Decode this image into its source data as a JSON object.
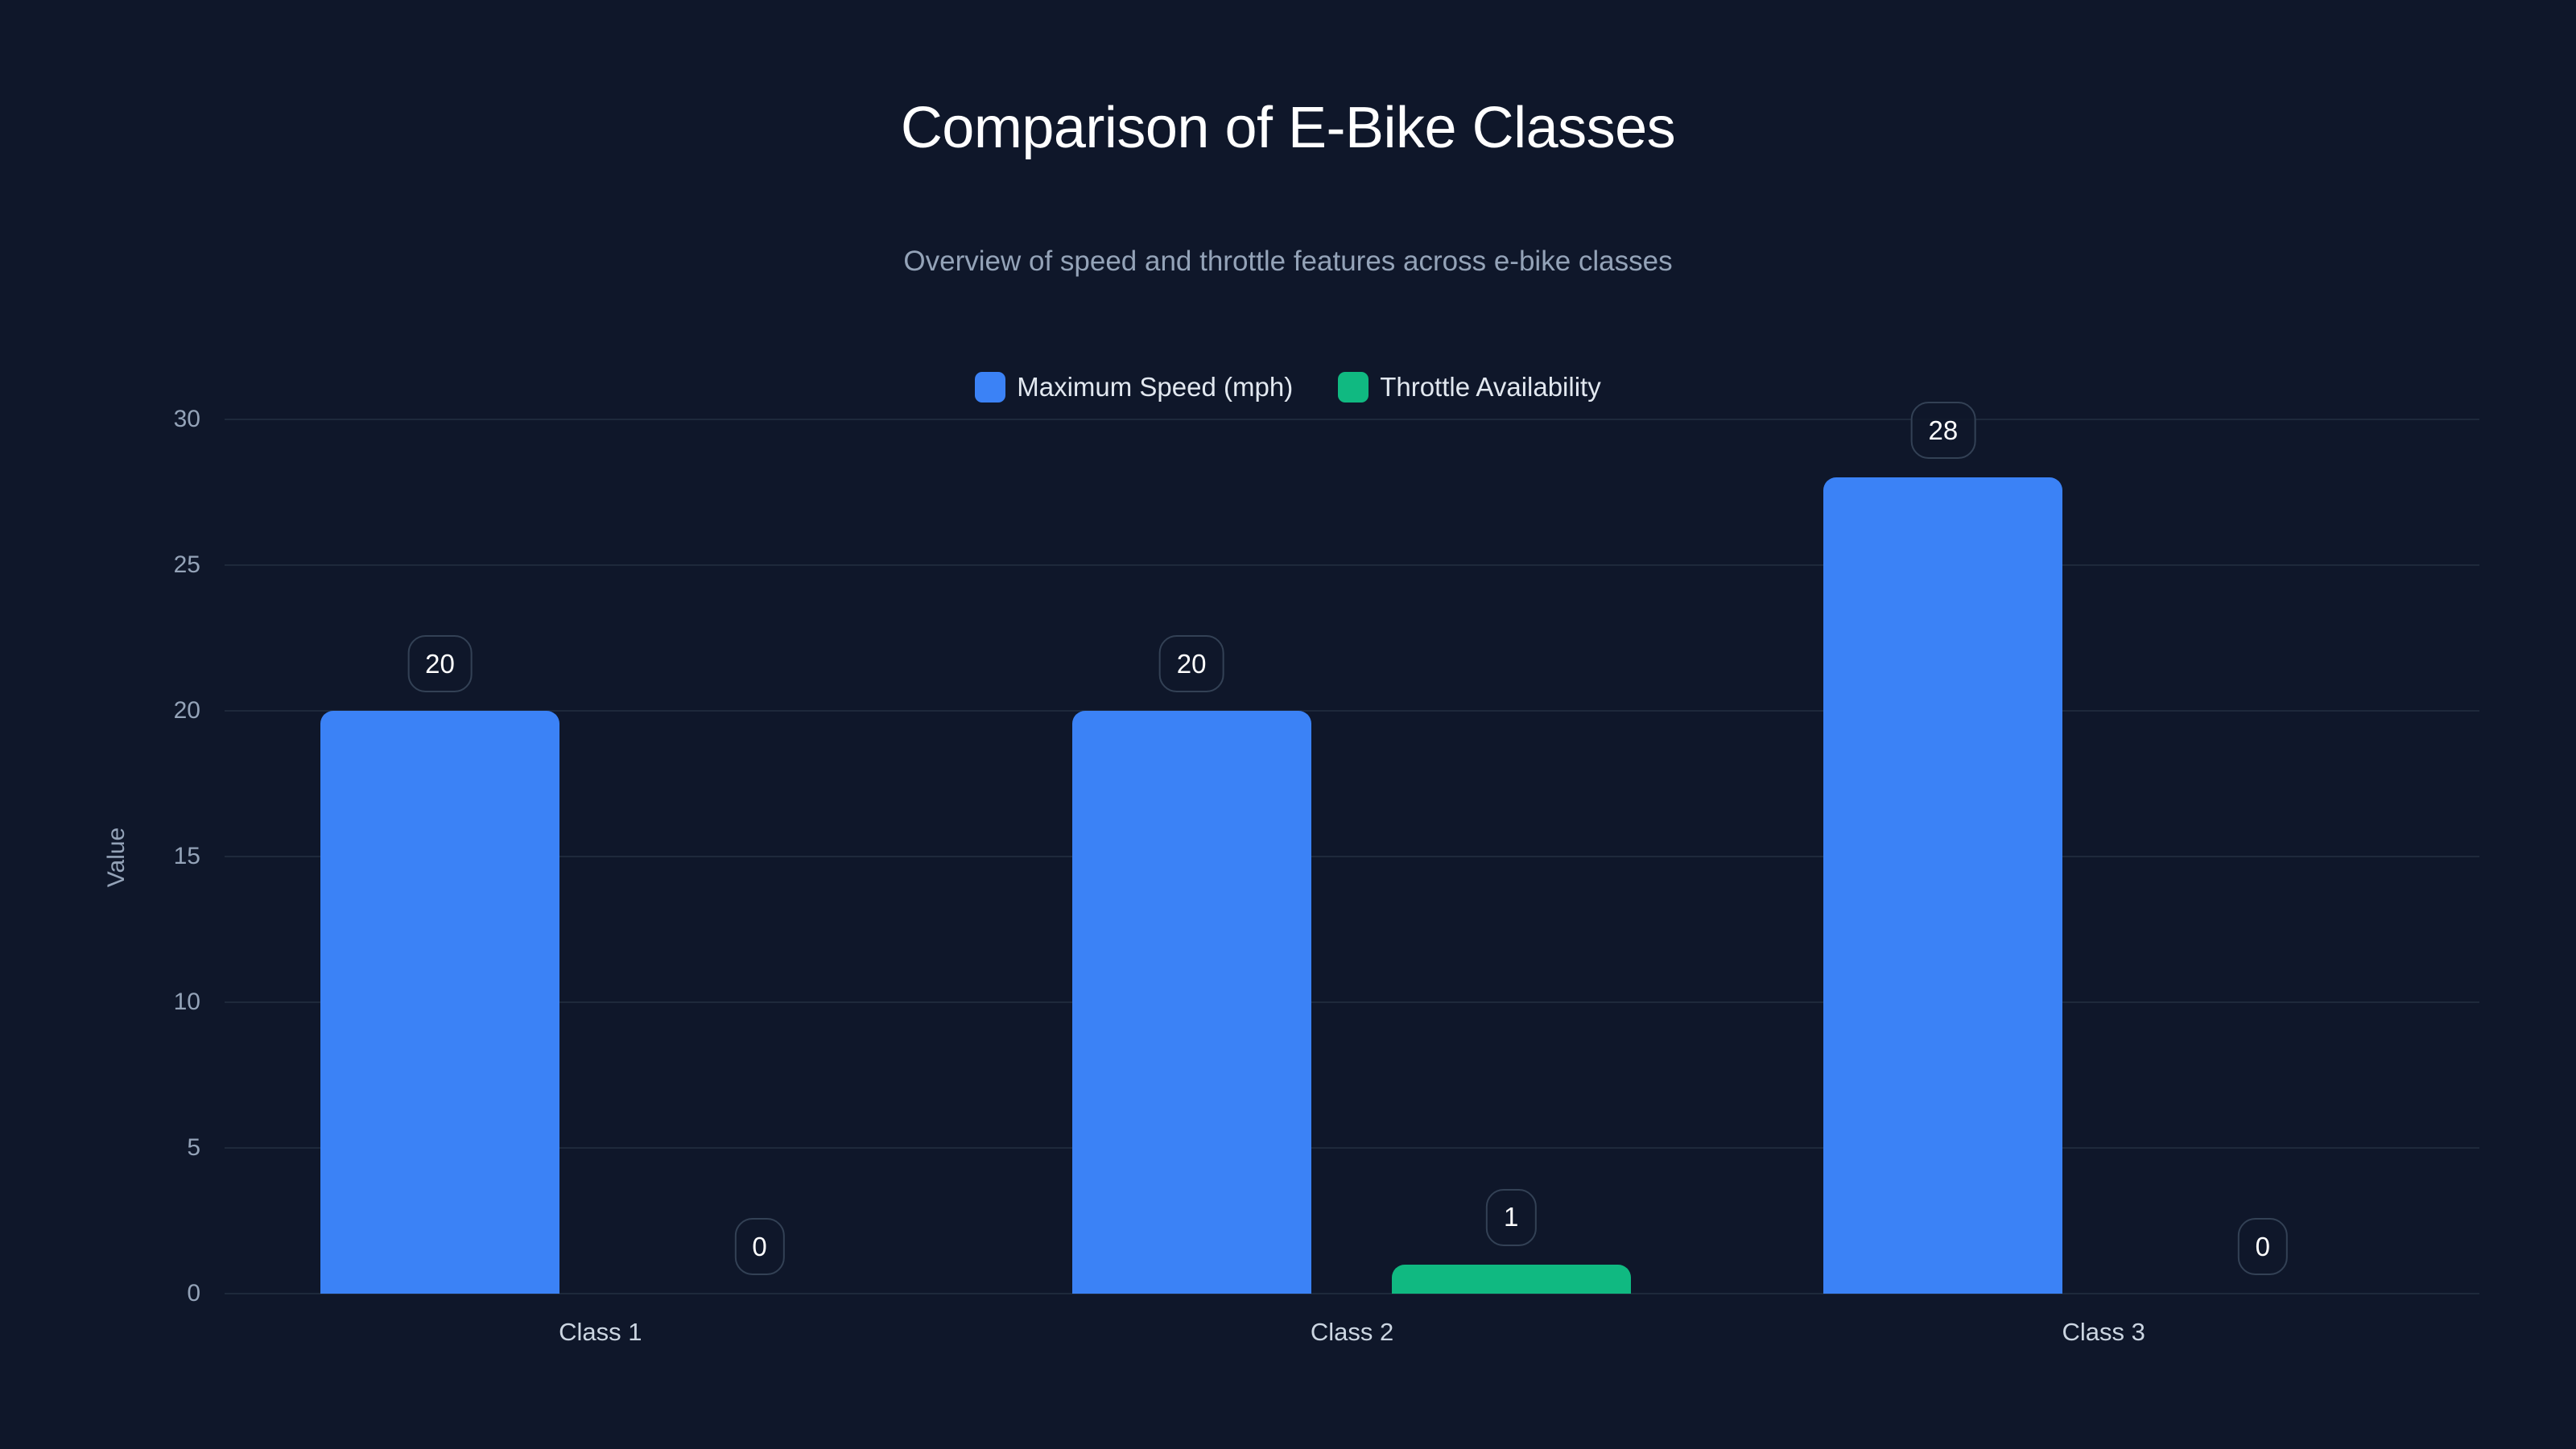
{
  "chart_data": {
    "type": "bar",
    "title": "Comparison of E-Bike Classes",
    "subtitle": "Overview of speed and throttle features across e-bike classes",
    "xlabel": "",
    "ylabel": "Value",
    "ylim": [
      0,
      30
    ],
    "yticks": [
      0,
      5,
      10,
      15,
      20,
      25,
      30
    ],
    "grid": true,
    "legend_position": "top",
    "categories": [
      "Class 1",
      "Class 2",
      "Class 3"
    ],
    "series": [
      {
        "name": "Maximum Speed (mph)",
        "color": "#3b82f6",
        "values": [
          20,
          20,
          28
        ]
      },
      {
        "name": "Throttle Availability",
        "color": "#10b981",
        "values": [
          0,
          1,
          0
        ]
      }
    ]
  },
  "colors": {
    "background": "#0f172a",
    "grid": "#1e293b",
    "label_border": "#334155"
  }
}
